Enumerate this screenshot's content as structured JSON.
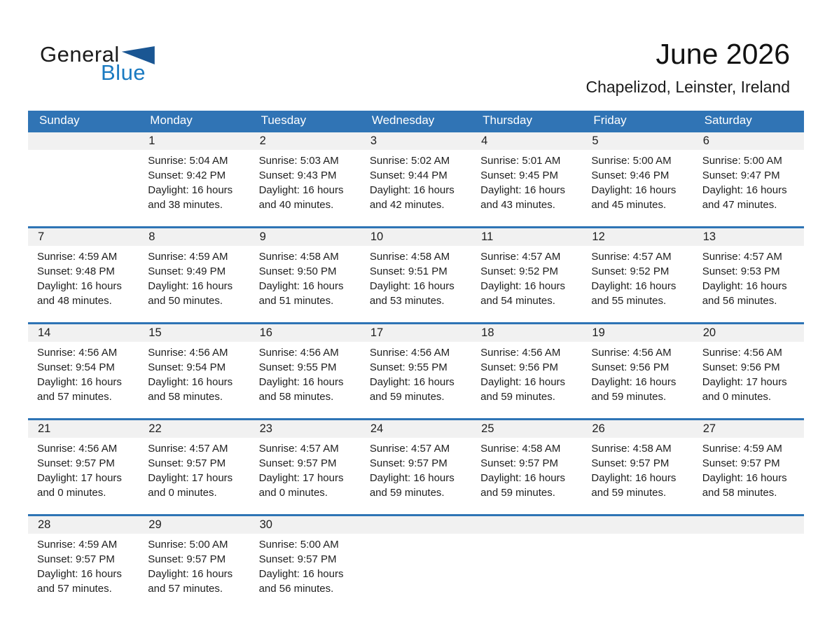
{
  "logo": {
    "word_general": "General",
    "word_blue": "Blue"
  },
  "header": {
    "title": "June 2026",
    "subtitle": "Chapelizod, Leinster, Ireland"
  },
  "colors": {
    "header_bar": "#3074b5",
    "header_text": "#ffffff",
    "week_separator": "#2e74b5",
    "day_number_band": "#f1f1f1",
    "logo_blue": "#1a7ac1",
    "logo_triangle": "#1a5693",
    "text": "#1e1e1e"
  },
  "calendar": {
    "weekdays": [
      "Sunday",
      "Monday",
      "Tuesday",
      "Wednesday",
      "Thursday",
      "Friday",
      "Saturday"
    ],
    "weeks": [
      [
        null,
        {
          "number": "1",
          "sunrise": "Sunrise: 5:04 AM",
          "sunset": "Sunset: 9:42 PM",
          "daylight_line1": "Daylight: 16 hours",
          "daylight_line2": "and 38 minutes."
        },
        {
          "number": "2",
          "sunrise": "Sunrise: 5:03 AM",
          "sunset": "Sunset: 9:43 PM",
          "daylight_line1": "Daylight: 16 hours",
          "daylight_line2": "and 40 minutes."
        },
        {
          "number": "3",
          "sunrise": "Sunrise: 5:02 AM",
          "sunset": "Sunset: 9:44 PM",
          "daylight_line1": "Daylight: 16 hours",
          "daylight_line2": "and 42 minutes."
        },
        {
          "number": "4",
          "sunrise": "Sunrise: 5:01 AM",
          "sunset": "Sunset: 9:45 PM",
          "daylight_line1": "Daylight: 16 hours",
          "daylight_line2": "and 43 minutes."
        },
        {
          "number": "5",
          "sunrise": "Sunrise: 5:00 AM",
          "sunset": "Sunset: 9:46 PM",
          "daylight_line1": "Daylight: 16 hours",
          "daylight_line2": "and 45 minutes."
        },
        {
          "number": "6",
          "sunrise": "Sunrise: 5:00 AM",
          "sunset": "Sunset: 9:47 PM",
          "daylight_line1": "Daylight: 16 hours",
          "daylight_line2": "and 47 minutes."
        }
      ],
      [
        {
          "number": "7",
          "sunrise": "Sunrise: 4:59 AM",
          "sunset": "Sunset: 9:48 PM",
          "daylight_line1": "Daylight: 16 hours",
          "daylight_line2": "and 48 minutes."
        },
        {
          "number": "8",
          "sunrise": "Sunrise: 4:59 AM",
          "sunset": "Sunset: 9:49 PM",
          "daylight_line1": "Daylight: 16 hours",
          "daylight_line2": "and 50 minutes."
        },
        {
          "number": "9",
          "sunrise": "Sunrise: 4:58 AM",
          "sunset": "Sunset: 9:50 PM",
          "daylight_line1": "Daylight: 16 hours",
          "daylight_line2": "and 51 minutes."
        },
        {
          "number": "10",
          "sunrise": "Sunrise: 4:58 AM",
          "sunset": "Sunset: 9:51 PM",
          "daylight_line1": "Daylight: 16 hours",
          "daylight_line2": "and 53 minutes."
        },
        {
          "number": "11",
          "sunrise": "Sunrise: 4:57 AM",
          "sunset": "Sunset: 9:52 PM",
          "daylight_line1": "Daylight: 16 hours",
          "daylight_line2": "and 54 minutes."
        },
        {
          "number": "12",
          "sunrise": "Sunrise: 4:57 AM",
          "sunset": "Sunset: 9:52 PM",
          "daylight_line1": "Daylight: 16 hours",
          "daylight_line2": "and 55 minutes."
        },
        {
          "number": "13",
          "sunrise": "Sunrise: 4:57 AM",
          "sunset": "Sunset: 9:53 PM",
          "daylight_line1": "Daylight: 16 hours",
          "daylight_line2": "and 56 minutes."
        }
      ],
      [
        {
          "number": "14",
          "sunrise": "Sunrise: 4:56 AM",
          "sunset": "Sunset: 9:54 PM",
          "daylight_line1": "Daylight: 16 hours",
          "daylight_line2": "and 57 minutes."
        },
        {
          "number": "15",
          "sunrise": "Sunrise: 4:56 AM",
          "sunset": "Sunset: 9:54 PM",
          "daylight_line1": "Daylight: 16 hours",
          "daylight_line2": "and 58 minutes."
        },
        {
          "number": "16",
          "sunrise": "Sunrise: 4:56 AM",
          "sunset": "Sunset: 9:55 PM",
          "daylight_line1": "Daylight: 16 hours",
          "daylight_line2": "and 58 minutes."
        },
        {
          "number": "17",
          "sunrise": "Sunrise: 4:56 AM",
          "sunset": "Sunset: 9:55 PM",
          "daylight_line1": "Daylight: 16 hours",
          "daylight_line2": "and 59 minutes."
        },
        {
          "number": "18",
          "sunrise": "Sunrise: 4:56 AM",
          "sunset": "Sunset: 9:56 PM",
          "daylight_line1": "Daylight: 16 hours",
          "daylight_line2": "and 59 minutes."
        },
        {
          "number": "19",
          "sunrise": "Sunrise: 4:56 AM",
          "sunset": "Sunset: 9:56 PM",
          "daylight_line1": "Daylight: 16 hours",
          "daylight_line2": "and 59 minutes."
        },
        {
          "number": "20",
          "sunrise": "Sunrise: 4:56 AM",
          "sunset": "Sunset: 9:56 PM",
          "daylight_line1": "Daylight: 17 hours",
          "daylight_line2": "and 0 minutes."
        }
      ],
      [
        {
          "number": "21",
          "sunrise": "Sunrise: 4:56 AM",
          "sunset": "Sunset: 9:57 PM",
          "daylight_line1": "Daylight: 17 hours",
          "daylight_line2": "and 0 minutes."
        },
        {
          "number": "22",
          "sunrise": "Sunrise: 4:57 AM",
          "sunset": "Sunset: 9:57 PM",
          "daylight_line1": "Daylight: 17 hours",
          "daylight_line2": "and 0 minutes."
        },
        {
          "number": "23",
          "sunrise": "Sunrise: 4:57 AM",
          "sunset": "Sunset: 9:57 PM",
          "daylight_line1": "Daylight: 17 hours",
          "daylight_line2": "and 0 minutes."
        },
        {
          "number": "24",
          "sunrise": "Sunrise: 4:57 AM",
          "sunset": "Sunset: 9:57 PM",
          "daylight_line1": "Daylight: 16 hours",
          "daylight_line2": "and 59 minutes."
        },
        {
          "number": "25",
          "sunrise": "Sunrise: 4:58 AM",
          "sunset": "Sunset: 9:57 PM",
          "daylight_line1": "Daylight: 16 hours",
          "daylight_line2": "and 59 minutes."
        },
        {
          "number": "26",
          "sunrise": "Sunrise: 4:58 AM",
          "sunset": "Sunset: 9:57 PM",
          "daylight_line1": "Daylight: 16 hours",
          "daylight_line2": "and 59 minutes."
        },
        {
          "number": "27",
          "sunrise": "Sunrise: 4:59 AM",
          "sunset": "Sunset: 9:57 PM",
          "daylight_line1": "Daylight: 16 hours",
          "daylight_line2": "and 58 minutes."
        }
      ],
      [
        {
          "number": "28",
          "sunrise": "Sunrise: 4:59 AM",
          "sunset": "Sunset: 9:57 PM",
          "daylight_line1": "Daylight: 16 hours",
          "daylight_line2": "and 57 minutes."
        },
        {
          "number": "29",
          "sunrise": "Sunrise: 5:00 AM",
          "sunset": "Sunset: 9:57 PM",
          "daylight_line1": "Daylight: 16 hours",
          "daylight_line2": "and 57 minutes."
        },
        {
          "number": "30",
          "sunrise": "Sunrise: 5:00 AM",
          "sunset": "Sunset: 9:57 PM",
          "daylight_line1": "Daylight: 16 hours",
          "daylight_line2": "and 56 minutes."
        },
        null,
        null,
        null,
        null
      ]
    ]
  }
}
